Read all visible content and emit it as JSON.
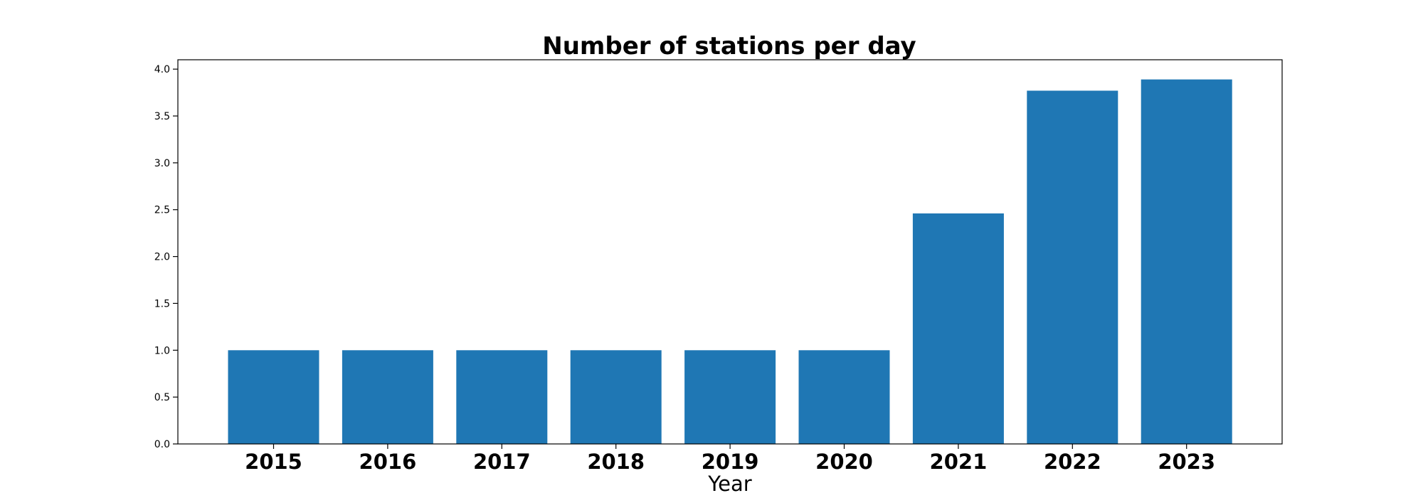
{
  "chart_data": {
    "type": "bar",
    "title": "Number of stations per day",
    "xlabel": "Year",
    "ylabel": "",
    "categories": [
      "2015",
      "2016",
      "2017",
      "2018",
      "2019",
      "2020",
      "2021",
      "2022",
      "2023"
    ],
    "values": [
      1.0,
      1.0,
      1.0,
      1.0,
      1.0,
      1.0,
      2.46,
      3.77,
      3.89
    ],
    "ylim": [
      0,
      4.1
    ],
    "yticks": [
      "0.0",
      "0.5",
      "1.0",
      "1.5",
      "2.0",
      "2.5",
      "3.0",
      "3.5",
      "4.0"
    ],
    "bar_color": "#1f77b4",
    "grid": false,
    "legend": "none"
  }
}
